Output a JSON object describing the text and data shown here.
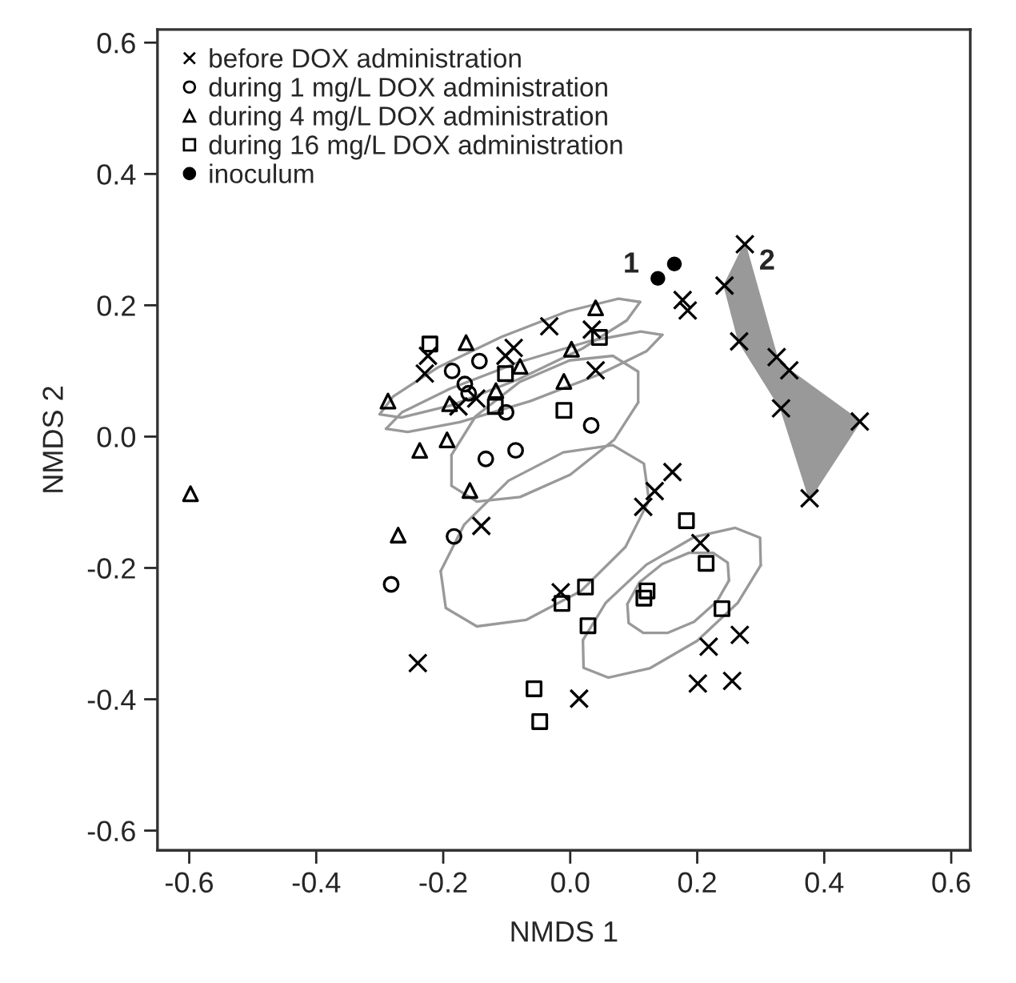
{
  "chart_data": {
    "type": "scatter",
    "xlabel": "NMDS 1",
    "ylabel": "NMDS 2",
    "xlim": [
      -0.65,
      0.63
    ],
    "ylim": [
      -0.63,
      0.62
    ],
    "xticks": [
      -0.6,
      -0.4,
      -0.2,
      {
        "value": 0,
        "label": "0.0"
      },
      0.2,
      0.4,
      0.6
    ],
    "yticks": [
      -0.6,
      -0.4,
      -0.2,
      {
        "value": 0,
        "label": "0.0"
      },
      0.2,
      0.4,
      0.6
    ],
    "grid": false,
    "legend": "top left",
    "annotations": [
      {
        "text": "1",
        "x": 0.138,
        "y": 0.241
      },
      {
        "text": "2",
        "x": 0.275,
        "y": 0.293
      }
    ],
    "series": [
      {
        "name": "before DOX administration",
        "marker": "cross",
        "color": "#000000",
        "x": [
          -0.033,
          0.034,
          -0.089,
          -0.102,
          -0.224,
          -0.229,
          -0.148,
          -0.176,
          0.04,
          0.161,
          0.133,
          0.115,
          -0.14,
          0.205,
          0.177,
          0.185,
          -0.015,
          0.267,
          0.218,
          -0.24,
          0.014,
          0.201,
          0.255,
          0.275,
          0.243,
          0.266,
          0.325,
          0.345,
          0.332,
          0.456,
          0.377
        ],
        "values": [
          0.168,
          0.163,
          0.135,
          0.123,
          0.123,
          0.096,
          0.058,
          0.046,
          0.101,
          -0.054,
          -0.083,
          -0.107,
          -0.136,
          -0.162,
          0.208,
          0.192,
          -0.237,
          -0.302,
          -0.32,
          -0.345,
          -0.399,
          -0.376,
          -0.372,
          0.293,
          0.23,
          0.145,
          0.121,
          0.101,
          0.043,
          0.023,
          -0.094
        ]
      },
      {
        "name": "during 1 mg/L DOX administration",
        "marker": "circle",
        "color": "#000000",
        "x": [
          -0.186,
          -0.143,
          -0.166,
          -0.16,
          -0.101,
          0.033,
          -0.086,
          -0.133,
          -0.183,
          -0.282
        ],
        "values": [
          0.1,
          0.115,
          0.08,
          0.066,
          0.037,
          0.017,
          -0.021,
          -0.034,
          -0.152,
          -0.225
        ]
      },
      {
        "name": "during 4 mg/L DOX administration",
        "marker": "triangle",
        "color": "#000000",
        "x": [
          0.04,
          -0.164,
          0.002,
          -0.079,
          -0.01,
          -0.117,
          -0.287,
          -0.19,
          -0.194,
          -0.237,
          -0.158,
          -0.271,
          -0.598
        ],
        "values": [
          0.196,
          0.143,
          0.133,
          0.107,
          0.084,
          0.07,
          0.054,
          0.05,
          -0.005,
          -0.021,
          -0.082,
          -0.15,
          -0.087
        ]
      },
      {
        "name": "during 16 mg/L DOX administration",
        "marker": "square",
        "color": "#000000",
        "x": [
          -0.221,
          0.046,
          -0.102,
          -0.118,
          -0.01,
          0.183,
          0.214,
          -0.013,
          0.024,
          0.121,
          0.116,
          0.239,
          0.028,
          -0.057,
          -0.048
        ],
        "values": [
          0.141,
          0.151,
          0.096,
          0.046,
          0.04,
          -0.128,
          -0.193,
          -0.254,
          -0.229,
          -0.235,
          -0.246,
          -0.262,
          -0.288,
          -0.384,
          -0.434
        ]
      },
      {
        "name": "inoculum",
        "marker": "circle",
        "color": "#000000",
        "x": [
          0.138,
          0.164
        ],
        "values": [
          0.241,
          0.263
        ]
      },
      {
        "type": "area",
        "color": "#999999",
        "x": [
          0.275,
          0.325,
          0.345,
          0.456,
          0.377,
          0.332,
          0.266,
          0.243,
          0.275
        ],
        "values": [
          0.293,
          0.121,
          0.101,
          0.023,
          -0.094,
          0.043,
          0.145,
          0.23,
          0.293
        ]
      },
      {
        "type": "line",
        "color": "#999999",
        "x": [
          0.11,
          0.076,
          -0.004,
          -0.108,
          -0.209,
          -0.279,
          -0.3
        ],
        "values": [
          0.205,
          0.21,
          0.191,
          0.152,
          0.105,
          0.061,
          0.034
        ]
      },
      {
        "type": "line",
        "color": "#999999",
        "x": [
          -0.3,
          -0.266,
          -0.186,
          -0.082,
          0.019,
          0.089,
          0.11
        ],
        "values": [
          0.034,
          0.029,
          0.048,
          0.087,
          0.134,
          0.177,
          0.205
        ]
      },
      {
        "type": "line",
        "color": "#999999",
        "x": [
          0.145,
          0.111,
          0.029,
          -0.082,
          -0.189,
          -0.265,
          -0.29
        ],
        "values": [
          0.155,
          0.16,
          0.145,
          0.113,
          0.073,
          0.037,
          0.012
        ]
      },
      {
        "type": "line",
        "color": "#999999",
        "x": [
          -0.29,
          -0.256,
          -0.174,
          -0.063,
          0.044,
          0.12,
          0.145
        ],
        "values": [
          0.012,
          0.007,
          0.022,
          0.054,
          0.094,
          0.13,
          0.155
        ]
      },
      {
        "type": "line",
        "color": "#999999",
        "x": [
          0.107,
          0.107,
          0.067,
          -0.001,
          -0.08,
          -0.149,
          -0.187
        ],
        "values": [
          0.052,
          0.099,
          0.123,
          0.116,
          0.083,
          0.031,
          -0.028
        ]
      },
      {
        "type": "line",
        "color": "#999999",
        "x": [
          -0.187,
          -0.187,
          -0.147,
          -0.079,
          0.0,
          0.069,
          0.107
        ],
        "values": [
          -0.028,
          -0.075,
          -0.099,
          -0.092,
          -0.058,
          -0.005,
          0.052
        ]
      },
      {
        "type": "line",
        "color": "#999999",
        "x": [
          0.124,
          0.116,
          0.067,
          -0.011,
          -0.097,
          -0.167,
          -0.204
        ],
        "values": [
          -0.097,
          -0.041,
          -0.013,
          -0.024,
          -0.067,
          -0.134,
          -0.205
        ]
      },
      {
        "type": "line",
        "color": "#999999",
        "x": [
          -0.204,
          -0.196,
          -0.147,
          -0.069,
          0.017,
          0.087,
          0.124
        ],
        "values": [
          -0.205,
          -0.261,
          -0.289,
          -0.279,
          -0.235,
          -0.168,
          -0.097
        ]
      },
      {
        "type": "line",
        "color": "#999999",
        "x": [
          0.3,
          0.299,
          0.26,
          0.195,
          0.12,
          0.056,
          0.02
        ],
        "values": [
          -0.196,
          -0.154,
          -0.139,
          -0.153,
          -0.195,
          -0.253,
          -0.31
        ]
      },
      {
        "type": "line",
        "color": "#999999",
        "x": [
          0.02,
          0.021,
          0.06,
          0.125,
          0.2,
          0.264,
          0.3
        ],
        "values": [
          -0.31,
          -0.352,
          -0.367,
          -0.353,
          -0.311,
          -0.253,
          -0.196
        ]
      },
      {
        "type": "line",
        "color": "#999999",
        "x": [
          0.25,
          0.248,
          0.225,
          0.187,
          0.145,
          0.109,
          0.09
        ],
        "values": [
          -0.219,
          -0.192,
          -0.177,
          -0.177,
          -0.194,
          -0.222,
          -0.255
        ]
      },
      {
        "type": "line",
        "color": "#999999",
        "x": [
          0.09,
          0.092,
          0.115,
          0.153,
          0.195,
          0.231,
          0.25
        ],
        "values": [
          -0.255,
          -0.284,
          -0.299,
          -0.299,
          -0.282,
          -0.251,
          -0.219
        ]
      }
    ]
  }
}
